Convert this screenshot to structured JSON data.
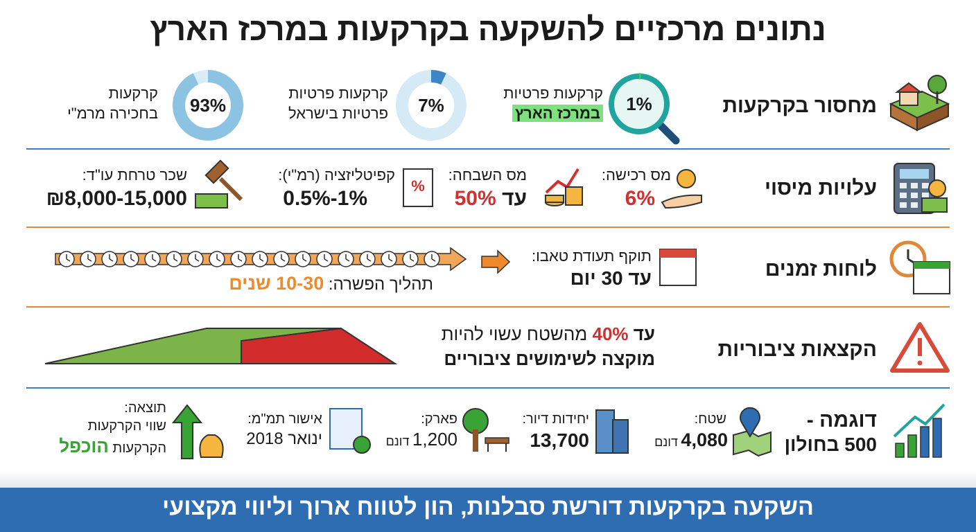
{
  "title": "נתונים מרכזיים להשקעה בקרקעות במרכז הארץ",
  "shortage": {
    "label": "מחסור בקרקעות",
    "items": [
      {
        "line1": "קרקעות פרטיות",
        "line2": "במרכז הארץ",
        "percent": {
          "value": 1,
          "label": "1%"
        }
      },
      {
        "line1": "קרקעות פרטיות",
        "line2": "פרטיות בישראל",
        "percent": {
          "value": 7,
          "label": "7%"
        }
      },
      {
        "line1": "קרקעות",
        "line2": "בחכירה מרמ\"י",
        "percent": {
          "value": 93,
          "label": "93%"
        }
      }
    ]
  },
  "taxes": {
    "label": "עלויות מיסוי",
    "items": [
      {
        "label": "מס רכישה:",
        "value": "6%"
      },
      {
        "label": "מס השבחה:",
        "prefix": "עד",
        "value": "50%"
      },
      {
        "label": "קפיטליזציה (רמ\"י):",
        "value": "0.5%-1%"
      },
      {
        "label": "שכר טרחת עו\"ד:",
        "value": "₪8,000-15,000"
      }
    ]
  },
  "timeline": {
    "label": "לוחות זמנים",
    "tabu": {
      "label": "תוקף תעודת טאבו:",
      "value": "עד 30 יום"
    },
    "settlement": {
      "label": "תהליך הפשרה:",
      "value": "10-30 שנים"
    }
  },
  "allocation": {
    "label": "הקצאות ציבוריות",
    "prefix": "עד",
    "highlight": "40%",
    "line1": "מהשטח עשוי להיות",
    "line2": "מוקצה לשימושים ציבוריים"
  },
  "example": {
    "title": "דוגמה -",
    "subtitle": "500 בחולון",
    "items": [
      {
        "label": "שטח:",
        "value": "4,080",
        "unit": "דונם"
      },
      {
        "label": "יחידות דיור:",
        "value": "13,700"
      },
      {
        "label": "פארק:",
        "value": "1,200",
        "unit": "דונם"
      },
      {
        "label": "אישור תמ\"מ:",
        "value": "ינואר 2018"
      }
    ],
    "result": {
      "label": "תוצאה:",
      "line1": "שווי הקרקעות",
      "line2": "הקרקעות",
      "highlight": "הוכפל"
    }
  },
  "footer": "השקעה בקרקעות דורשת סבלנות, הון לטווח ארוך וליווי מקצועי"
}
